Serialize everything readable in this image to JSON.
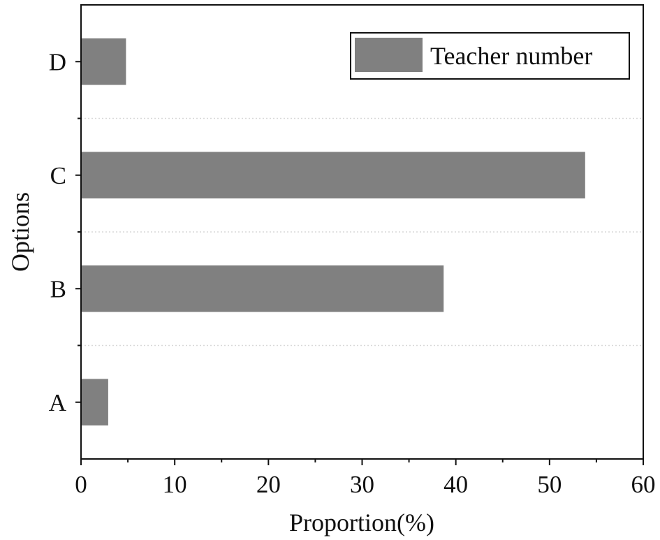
{
  "chart_data": {
    "type": "bar",
    "orientation": "horizontal",
    "categories": [
      "A",
      "B",
      "C",
      "D"
    ],
    "series": [
      {
        "name": "Teacher number",
        "values": [
          2.9,
          38.7,
          53.8,
          4.8
        ]
      }
    ],
    "xlabel": "Proportion(%)",
    "ylabel": "Options",
    "xlim": [
      0,
      60
    ],
    "xticks": [
      0,
      10,
      20,
      30,
      40,
      50,
      60
    ],
    "grid": "horizontal dotted lines between categories",
    "legend": {
      "position": "top-right",
      "entries": [
        "Teacher number"
      ]
    },
    "colors": {
      "bar": "#808080",
      "axis": "#111111",
      "grid": "#d9d9d9"
    }
  }
}
